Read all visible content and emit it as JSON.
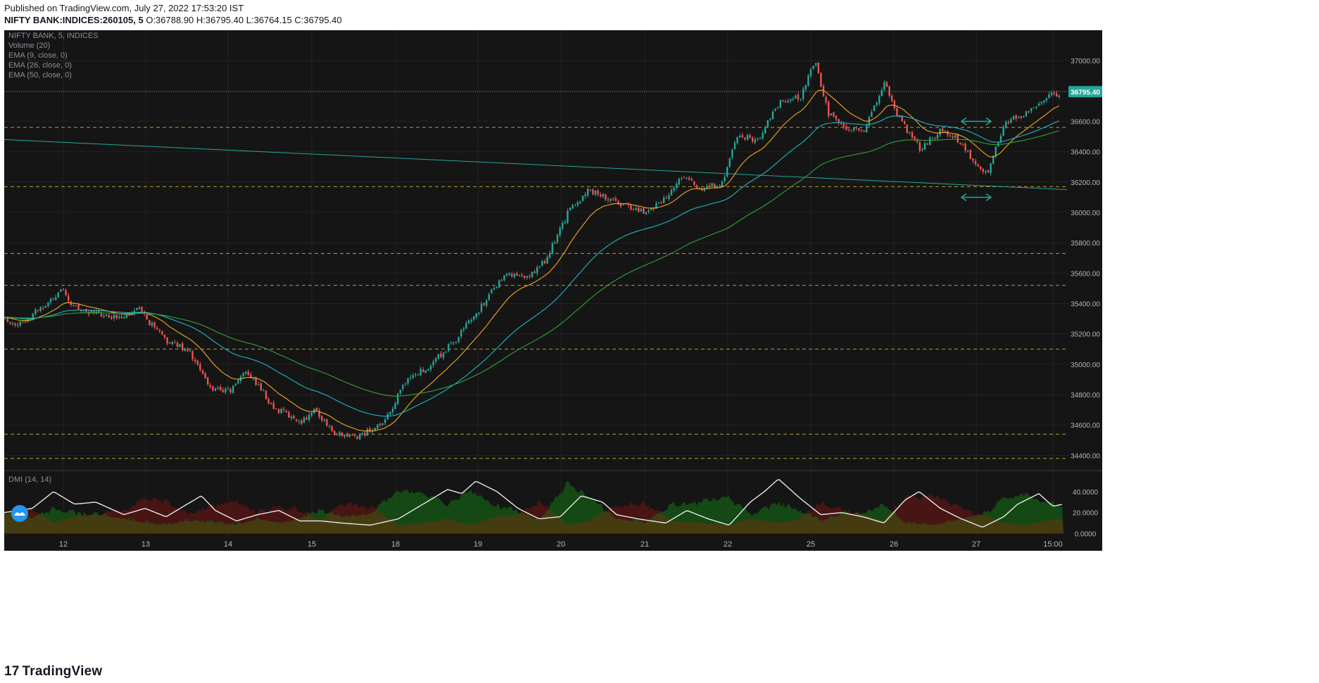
{
  "header": {
    "published": "Published on TradingView.com, July 27, 2022 17:53:20 IST",
    "symbol": "NIFTY BANK:INDICES:260105, 5",
    "ohlc": " O:36788.90 H:36795.40 L:36764.15 C:36795.40"
  },
  "legend": {
    "line1": "NIFTY BANK, 5, INDICES",
    "line2": "Volume (20)",
    "line3": "EMA (9, close, 0)",
    "line4": "EMA (26, close, 0)",
    "line5": "EMA (50, close, 0)",
    "dmi": "DMI (14, 14)"
  },
  "footer": {
    "brand": "TradingView",
    "logo": "tv-logo-icon"
  },
  "colors": {
    "background": "#131722",
    "up": "#26a69a",
    "down": "#ef5350",
    "ema9": "#f5a623",
    "ema26": "#1eb5c8",
    "ema50": "#2fa33a",
    "trendline": "#26a69a",
    "hline": "#b5a23a",
    "price_label": "#26a69a"
  },
  "chart_data": {
    "type": "candlestick",
    "price_axis": [
      "37000.00",
      "36800.00",
      "36600.00",
      "36400.00",
      "36200.00",
      "36000.00",
      "35800.00",
      "35600.00",
      "35400.00",
      "35200.00",
      "35000.00",
      "34800.00",
      "34600.00",
      "34400.00"
    ],
    "ylim": [
      34300,
      37200
    ],
    "last_price": "36795.40",
    "x_ticks": [
      "12",
      "13",
      "14",
      "15",
      "18",
      "19",
      "20",
      "21",
      "22",
      "25",
      "26",
      "27",
      "15:00"
    ],
    "price_path": [
      [
        0,
        35300
      ],
      [
        20,
        35260
      ],
      [
        40,
        35340
      ],
      [
        60,
        35400
      ],
      [
        80,
        35500
      ],
      [
        90,
        35400
      ],
      [
        110,
        35360
      ],
      [
        150,
        35300
      ],
      [
        190,
        35360
      ],
      [
        210,
        35250
      ],
      [
        230,
        35150
      ],
      [
        260,
        35100
      ],
      [
        290,
        34850
      ],
      [
        320,
        34820
      ],
      [
        340,
        34960
      ],
      [
        360,
        34860
      ],
      [
        380,
        34720
      ],
      [
        420,
        34620
      ],
      [
        440,
        34700
      ],
      [
        470,
        34540
      ],
      [
        500,
        34520
      ],
      [
        540,
        34620
      ],
      [
        570,
        34900
      ],
      [
        600,
        34980
      ],
      [
        640,
        35160
      ],
      [
        680,
        35400
      ],
      [
        710,
        35600
      ],
      [
        740,
        35560
      ],
      [
        770,
        35700
      ],
      [
        800,
        36000
      ],
      [
        830,
        36150
      ],
      [
        860,
        36080
      ],
      [
        880,
        36050
      ],
      [
        910,
        36000
      ],
      [
        940,
        36100
      ],
      [
        960,
        36250
      ],
      [
        990,
        36150
      ],
      [
        1020,
        36200
      ],
      [
        1040,
        36500
      ],
      [
        1070,
        36480
      ],
      [
        1100,
        36720
      ],
      [
        1130,
        36760
      ],
      [
        1150,
        37000
      ],
      [
        1170,
        36650
      ],
      [
        1190,
        36560
      ],
      [
        1220,
        36540
      ],
      [
        1250,
        36860
      ],
      [
        1270,
        36620
      ],
      [
        1300,
        36420
      ],
      [
        1330,
        36540
      ],
      [
        1350,
        36500
      ],
      [
        1370,
        36380
      ],
      [
        1395,
        36260
      ],
      [
        1420,
        36580
      ],
      [
        1450,
        36660
      ],
      [
        1480,
        36760
      ],
      [
        1500,
        36795
      ]
    ],
    "horizontal_levels": [
      36560,
      36170,
      35730,
      35520,
      35100,
      34540,
      34380
    ],
    "trendline": [
      [
        0,
        36480
      ],
      [
        1510,
        36150
      ]
    ],
    "dmi_axis": [
      "40.0000",
      "20.0000",
      "0.0000"
    ],
    "dmi_ylim": [
      -3,
      60
    ],
    "adx_path": [
      [
        0,
        20
      ],
      [
        40,
        24
      ],
      [
        70,
        40
      ],
      [
        100,
        28
      ],
      [
        130,
        30
      ],
      [
        170,
        18
      ],
      [
        200,
        24
      ],
      [
        230,
        16
      ],
      [
        260,
        28
      ],
      [
        280,
        36
      ],
      [
        300,
        22
      ],
      [
        330,
        12
      ],
      [
        360,
        18
      ],
      [
        390,
        22
      ],
      [
        420,
        12
      ],
      [
        450,
        12
      ],
      [
        480,
        10
      ],
      [
        520,
        8
      ],
      [
        560,
        14
      ],
      [
        600,
        30
      ],
      [
        630,
        42
      ],
      [
        650,
        38
      ],
      [
        670,
        50
      ],
      [
        700,
        40
      ],
      [
        730,
        24
      ],
      [
        760,
        14
      ],
      [
        790,
        16
      ],
      [
        820,
        36
      ],
      [
        850,
        30
      ],
      [
        870,
        18
      ],
      [
        900,
        14
      ],
      [
        940,
        10
      ],
      [
        970,
        22
      ],
      [
        1000,
        14
      ],
      [
        1030,
        8
      ],
      [
        1060,
        30
      ],
      [
        1080,
        40
      ],
      [
        1100,
        52
      ],
      [
        1130,
        34
      ],
      [
        1160,
        18
      ],
      [
        1190,
        20
      ],
      [
        1220,
        16
      ],
      [
        1250,
        10
      ],
      [
        1280,
        32
      ],
      [
        1300,
        40
      ],
      [
        1330,
        24
      ],
      [
        1360,
        14
      ],
      [
        1390,
        6
      ],
      [
        1420,
        16
      ],
      [
        1440,
        28
      ],
      [
        1470,
        38
      ],
      [
        1490,
        26
      ],
      [
        1505,
        28
      ]
    ],
    "di_plus_path": [
      [
        0,
        22
      ],
      [
        40,
        14
      ],
      [
        70,
        24
      ],
      [
        100,
        20
      ],
      [
        130,
        18
      ],
      [
        170,
        14
      ],
      [
        200,
        10
      ],
      [
        230,
        8
      ],
      [
        260,
        12
      ],
      [
        300,
        10
      ],
      [
        330,
        8
      ],
      [
        360,
        14
      ],
      [
        390,
        10
      ],
      [
        420,
        14
      ],
      [
        450,
        22
      ],
      [
        480,
        16
      ],
      [
        520,
        18
      ],
      [
        560,
        42
      ],
      [
        600,
        36
      ],
      [
        630,
        28
      ],
      [
        660,
        40
      ],
      [
        700,
        26
      ],
      [
        730,
        22
      ],
      [
        760,
        12
      ],
      [
        800,
        48
      ],
      [
        830,
        36
      ],
      [
        870,
        14
      ],
      [
        910,
        10
      ],
      [
        950,
        28
      ],
      [
        990,
        30
      ],
      [
        1030,
        34
      ],
      [
        1060,
        18
      ],
      [
        1100,
        28
      ],
      [
        1130,
        22
      ],
      [
        1160,
        12
      ],
      [
        1190,
        18
      ],
      [
        1220,
        20
      ],
      [
        1250,
        28
      ],
      [
        1280,
        10
      ],
      [
        1320,
        8
      ],
      [
        1360,
        14
      ],
      [
        1400,
        20
      ],
      [
        1420,
        34
      ],
      [
        1450,
        38
      ],
      [
        1480,
        30
      ],
      [
        1505,
        26
      ]
    ],
    "di_minus_path": [
      [
        0,
        18
      ],
      [
        40,
        24
      ],
      [
        70,
        10
      ],
      [
        100,
        16
      ],
      [
        130,
        18
      ],
      [
        170,
        22
      ],
      [
        200,
        34
      ],
      [
        230,
        30
      ],
      [
        260,
        20
      ],
      [
        300,
        26
      ],
      [
        330,
        30
      ],
      [
        360,
        20
      ],
      [
        390,
        26
      ],
      [
        420,
        22
      ],
      [
        450,
        12
      ],
      [
        480,
        28
      ],
      [
        520,
        26
      ],
      [
        560,
        8
      ],
      [
        600,
        10
      ],
      [
        630,
        14
      ],
      [
        660,
        8
      ],
      [
        700,
        16
      ],
      [
        730,
        18
      ],
      [
        760,
        30
      ],
      [
        800,
        8
      ],
      [
        830,
        12
      ],
      [
        870,
        26
      ],
      [
        910,
        28
      ],
      [
        950,
        12
      ],
      [
        990,
        10
      ],
      [
        1030,
        8
      ],
      [
        1060,
        14
      ],
      [
        1100,
        10
      ],
      [
        1130,
        14
      ],
      [
        1160,
        30
      ],
      [
        1190,
        22
      ],
      [
        1220,
        18
      ],
      [
        1250,
        12
      ],
      [
        1280,
        34
      ],
      [
        1320,
        36
      ],
      [
        1360,
        24
      ],
      [
        1400,
        16
      ],
      [
        1420,
        10
      ],
      [
        1450,
        8
      ],
      [
        1480,
        12
      ],
      [
        1505,
        14
      ]
    ]
  }
}
